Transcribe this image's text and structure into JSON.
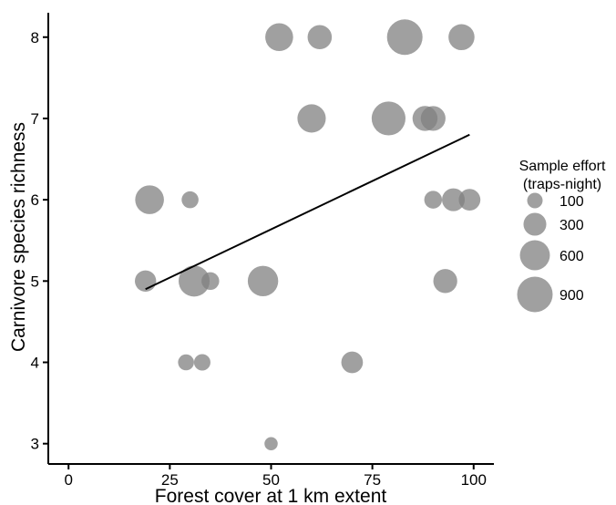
{
  "chart_data": {
    "type": "scatter",
    "xlabel": "Forest cover at 1 km extent",
    "ylabel": "Carnivore species richness",
    "xlim": [
      -5,
      105
    ],
    "ylim": [
      2.75,
      8.3
    ],
    "x_ticks": [
      0,
      25,
      50,
      75,
      100
    ],
    "y_ticks": [
      3,
      4,
      5,
      6,
      7,
      8
    ],
    "grid": false,
    "legend": {
      "title_line1": "Sample effort",
      "title_line2": "(traps-night)",
      "position": "right",
      "entries": [
        {
          "label": "100",
          "size": 100
        },
        {
          "label": "300",
          "size": 300
        },
        {
          "label": "600",
          "size": 600
        },
        {
          "label": "900",
          "size": 900
        }
      ]
    },
    "point_color": "#808080",
    "point_opacity": 0.75,
    "points": [
      {
        "x": 52,
        "y": 8,
        "size": 500
      },
      {
        "x": 62,
        "y": 8,
        "size": 350
      },
      {
        "x": 83,
        "y": 8,
        "size": 900
      },
      {
        "x": 97,
        "y": 8,
        "size": 420
      },
      {
        "x": 60,
        "y": 7,
        "size": 520
      },
      {
        "x": 79,
        "y": 7,
        "size": 800
      },
      {
        "x": 88,
        "y": 7,
        "size": 380
      },
      {
        "x": 90,
        "y": 7,
        "size": 370
      },
      {
        "x": 20,
        "y": 6,
        "size": 540
      },
      {
        "x": 30,
        "y": 6,
        "size": 130
      },
      {
        "x": 90,
        "y": 6,
        "size": 150
      },
      {
        "x": 95,
        "y": 6,
        "size": 300
      },
      {
        "x": 99,
        "y": 6,
        "size": 260
      },
      {
        "x": 19,
        "y": 5,
        "size": 250
      },
      {
        "x": 31,
        "y": 5,
        "size": 650
      },
      {
        "x": 35,
        "y": 5,
        "size": 150
      },
      {
        "x": 48,
        "y": 5,
        "size": 620
      },
      {
        "x": 93,
        "y": 5,
        "size": 340
      },
      {
        "x": 29,
        "y": 4,
        "size": 110
      },
      {
        "x": 33,
        "y": 4,
        "size": 120
      },
      {
        "x": 70,
        "y": 4,
        "size": 260
      },
      {
        "x": 50,
        "y": 3,
        "size": 60
      }
    ],
    "trend_line": {
      "x": [
        19,
        99
      ],
      "y": [
        4.9,
        6.8
      ]
    }
  }
}
